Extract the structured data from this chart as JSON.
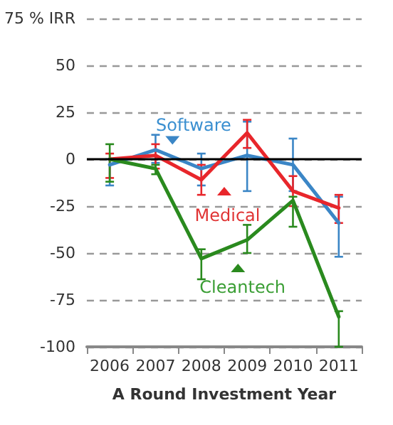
{
  "chart_data": {
    "type": "line",
    "xlabel": "A Round Investment Year",
    "categories": [
      "2006",
      "2007",
      "2008",
      "2009",
      "2010",
      "2011"
    ],
    "series": [
      {
        "name": "Software",
        "color": "#3b86c6",
        "values": [
          -3,
          5,
          -5,
          2,
          -3,
          -34
        ],
        "errors": [
          [
            -14,
            0
          ],
          [
            -2,
            13
          ],
          [
            -14,
            3
          ],
          [
            -17,
            20
          ],
          [
            -17,
            11
          ],
          [
            -52,
            -20
          ]
        ]
      },
      {
        "name": "Medical",
        "color": "#e8262b",
        "values": [
          0,
          2,
          -11,
          14,
          -17,
          -26
        ],
        "errors": [
          [
            -10,
            3
          ],
          [
            -5,
            8
          ],
          [
            -19,
            -3
          ],
          [
            6,
            21
          ],
          [
            -25,
            -9
          ],
          [
            -34,
            -19
          ]
        ]
      },
      {
        "name": "Cleantech",
        "color": "#2a8a1e",
        "values": [
          0,
          -5,
          -53,
          -43,
          -22,
          -84
        ],
        "errors": [
          [
            -12,
            8
          ],
          [
            -8,
            -3
          ],
          [
            -64,
            -48
          ],
          [
            -50,
            -35
          ],
          [
            -36,
            -20
          ],
          [
            -100,
            -81
          ]
        ]
      }
    ],
    "ylim": [
      -100,
      75
    ],
    "yticks": [
      -100,
      -75,
      -50,
      -25,
      0,
      25,
      50,
      {
        "value": 75,
        "label": "75 % IRR"
      }
    ],
    "ref_lines": [
      {
        "axis": "y",
        "value": 0,
        "label": null,
        "color": "#000000"
      }
    ],
    "grid": "y",
    "legend": "center",
    "marker": "none",
    "line_style": "solid"
  }
}
